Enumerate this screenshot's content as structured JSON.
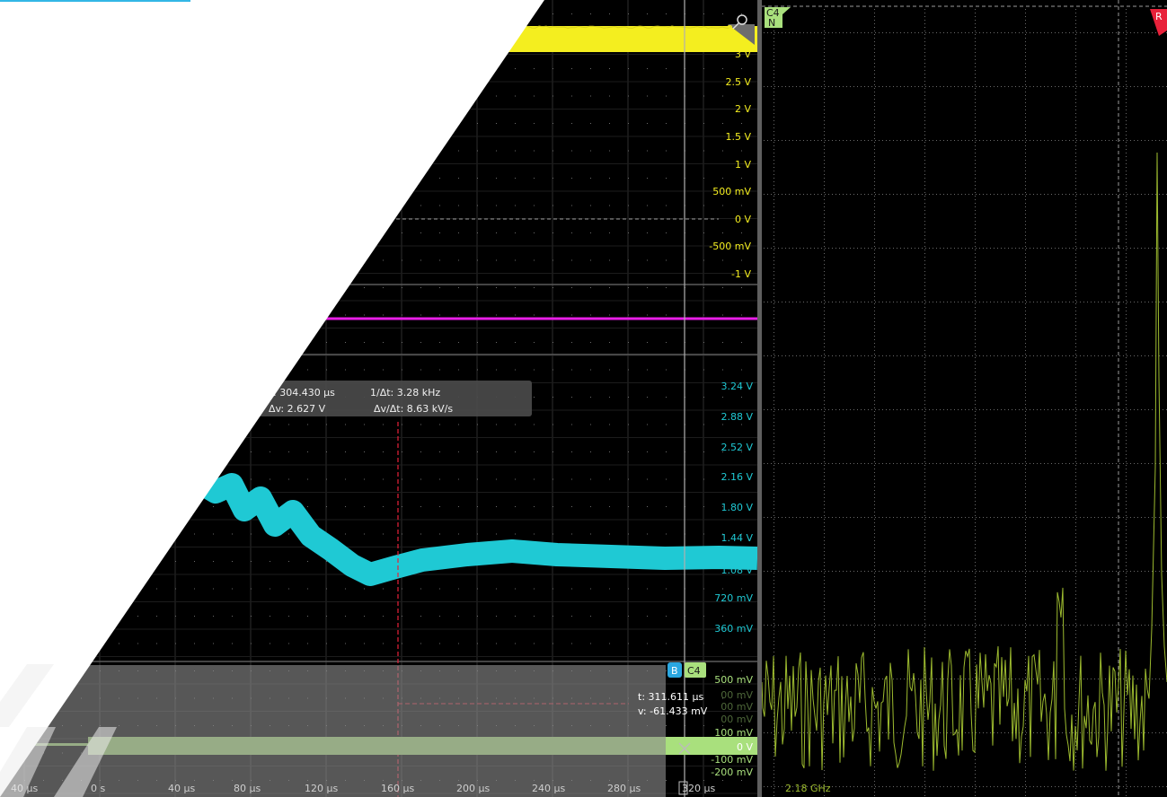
{
  "colors": {
    "yellow": "#f4ee1f",
    "magenta": "#e81ee6",
    "cyan": "#1fc9d4",
    "green": "#a9e07d",
    "spectrum": "#9dbb2f",
    "accent_blue": "#2aa7e0",
    "ref_red": "#e8213a",
    "header_blue": "#33b7e6"
  },
  "ch1": {
    "labels": [
      "3 V",
      "2.5 V",
      "2 V",
      "1.5 V",
      "1 V",
      "500 mV",
      "0 V",
      "-500 mV",
      "-1 V"
    ],
    "partial_top": "3"
  },
  "ch3": {
    "labels": [
      "3.24 V",
      "2.88 V",
      "2.52 V",
      "2.16 V",
      "1.80 V",
      "1.44 V",
      "1.08 V",
      "720 mV",
      "360 mV"
    ]
  },
  "ch4": {
    "badge_b": "B",
    "badge_c4": "C4",
    "labels": [
      "500 mV",
      "100 mV",
      "0 V",
      "-100 mV",
      "-200 mV"
    ],
    "hidden_labels": [
      "00 mV",
      "00 mV",
      "00 mV"
    ]
  },
  "cursor_readout": {
    "line1_t": ": 304.430 µs",
    "line1_inv": "1/Δt: 3.28 kHz",
    "line2_dv": "Δv: 2.627 V",
    "line2_rate": "Δv/Δt: 8.63 kV/s"
  },
  "cursor_b_readout": {
    "t": "t: 311.611 µs",
    "v": "v: -61.433 mV"
  },
  "time_axis": [
    "40 µs",
    "0 s",
    "40 µs",
    "80 µs",
    "120 µs",
    "160 µs",
    "200 µs",
    "240 µs",
    "280 µs",
    "320 µs"
  ],
  "spectrum": {
    "badge_top": "C4",
    "badge_bottom": "N",
    "ref_badge": "R",
    "freq_label": "2.18 GHz"
  }
}
